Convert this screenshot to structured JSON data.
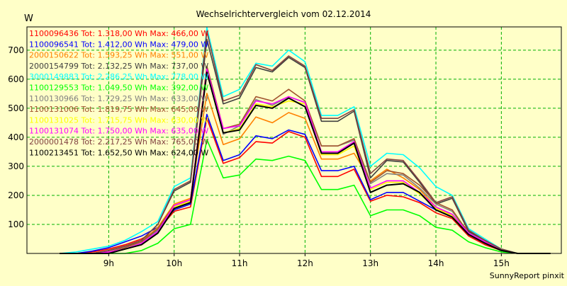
{
  "chart_data": {
    "type": "line",
    "title": "Wechselrichtervergleich vom 02.12.2014",
    "ylabel": "W",
    "xlabel": "",
    "footer": "SunnyReport pinxit",
    "x": [
      "08:15",
      "08:30",
      "08:45",
      "09:00",
      "09:15",
      "09:30",
      "09:45",
      "10:00",
      "10:15",
      "10:30",
      "10:45",
      "11:00",
      "11:15",
      "11:30",
      "11:45",
      "12:00",
      "12:15",
      "12:30",
      "12:45",
      "13:00",
      "13:15",
      "13:30",
      "13:45",
      "14:00",
      "14:15",
      "14:30",
      "14:45",
      "15:00",
      "15:15",
      "15:30",
      "15:45"
    ],
    "xticks": [
      "9h",
      "10h",
      "11h",
      "12h",
      "13h",
      "14h",
      "15h"
    ],
    "yticks": [
      100,
      200,
      300,
      400,
      500,
      600,
      700
    ],
    "ylim": [
      0,
      780
    ],
    "grid": true,
    "legend_position": "top-left",
    "series": [
      {
        "name": "1100096436 Tot: 1.318,00 Wh Max: 466,00 W",
        "color": "#ff0000",
        "values": [
          0,
          0,
          5,
          15,
          30,
          50,
          80,
          145,
          160,
          466,
          310,
          330,
          385,
          380,
          420,
          400,
          265,
          265,
          290,
          180,
          200,
          195,
          175,
          140,
          120,
          60,
          30,
          10,
          0,
          0,
          0
        ]
      },
      {
        "name": "1100096541 Tot: 1.412,00 Wh Max: 479,00 W",
        "color": "#0000ff",
        "values": [
          0,
          0,
          8,
          20,
          40,
          60,
          90,
          150,
          170,
          479,
          320,
          340,
          405,
          395,
          425,
          410,
          285,
          285,
          300,
          185,
          210,
          210,
          180,
          150,
          130,
          70,
          35,
          12,
          0,
          0,
          0
        ]
      },
      {
        "name": "2000150622 Tot: 1.593,25 Wh Max: 551,00 W",
        "color": "#ff8000",
        "values": [
          0,
          0,
          0,
          10,
          25,
          40,
          90,
          170,
          190,
          551,
          375,
          395,
          470,
          450,
          485,
          465,
          325,
          325,
          345,
          250,
          290,
          260,
          220,
          160,
          130,
          80,
          45,
          15,
          0,
          0,
          0
        ]
      },
      {
        "name": "2000154799 Tot: 2.132,25 Wh Max: 737,00 W",
        "color": "#404040",
        "values": [
          0,
          0,
          0,
          10,
          25,
          45,
          100,
          215,
          245,
          737,
          515,
          535,
          640,
          625,
          675,
          640,
          455,
          455,
          490,
          260,
          320,
          315,
          245,
          170,
          190,
          75,
          45,
          15,
          0,
          0,
          0
        ]
      },
      {
        "name": "3000149883 Tot: 2.286,25 Wh Max: 778,00 W",
        "color": "#00ffff",
        "values": [
          0,
          5,
          15,
          25,
          45,
          75,
          110,
          230,
          260,
          778,
          540,
          565,
          655,
          645,
          700,
          660,
          475,
          475,
          505,
          300,
          345,
          340,
          295,
          230,
          200,
          85,
          50,
          15,
          0,
          0,
          0
        ]
      },
      {
        "name": "1100129553 Tot: 1.049,50 Wh Max: 392,00 W",
        "color": "#00ff00",
        "values": [
          0,
          0,
          0,
          0,
          0,
          10,
          35,
          85,
          100,
          392,
          260,
          270,
          325,
          320,
          335,
          320,
          220,
          220,
          235,
          130,
          150,
          150,
          130,
          90,
          80,
          40,
          20,
          5,
          0,
          0,
          0
        ]
      },
      {
        "name": "1100130966 Tot: 1.729,25 Wh Max: 633,00 W",
        "color": "#808080",
        "values": [
          0,
          0,
          0,
          5,
          20,
          40,
          80,
          160,
          180,
          633,
          410,
          440,
          530,
          510,
          540,
          520,
          370,
          370,
          390,
          240,
          275,
          270,
          225,
          170,
          145,
          70,
          40,
          10,
          0,
          0,
          0
        ]
      },
      {
        "name": "1100131006 Tot: 1.819,75 Wh Max: 645,00 W",
        "color": "#a0522d",
        "values": [
          0,
          0,
          0,
          5,
          20,
          40,
          85,
          165,
          185,
          645,
          430,
          445,
          540,
          525,
          565,
          525,
          370,
          370,
          395,
          245,
          285,
          275,
          235,
          175,
          150,
          70,
          40,
          10,
          0,
          0,
          0
        ]
      },
      {
        "name": "1100131025 Tot: 1.715,75 Wh Max: 630,00 W",
        "color": "#ffff00",
        "values": [
          0,
          0,
          0,
          5,
          15,
          30,
          70,
          160,
          180,
          630,
          415,
          430,
          515,
          505,
          525,
          515,
          340,
          340,
          370,
          220,
          245,
          245,
          205,
          155,
          130,
          65,
          35,
          10,
          0,
          0,
          0
        ]
      },
      {
        "name": "1100131074 Tot: 1.750,00 Wh Max: 635,00 W",
        "color": "#ff00ff",
        "values": [
          0,
          0,
          0,
          5,
          15,
          35,
          75,
          165,
          185,
          635,
          430,
          440,
          525,
          515,
          540,
          520,
          350,
          350,
          385,
          225,
          250,
          250,
          210,
          160,
          135,
          70,
          40,
          10,
          0,
          0,
          0
        ]
      },
      {
        "name": "2000001478 Tot: 2.217,25 Wh Max: 765,00 W",
        "color": "#804040",
        "values": [
          0,
          0,
          0,
          10,
          25,
          45,
          100,
          220,
          250,
          765,
          525,
          545,
          650,
          630,
          680,
          645,
          465,
          465,
          495,
          275,
          325,
          320,
          250,
          175,
          195,
          80,
          45,
          15,
          0,
          0,
          0
        ]
      },
      {
        "name": "1100213451 Tot: 1.652,50 Wh Max: 624,00 W",
        "color": "#000000",
        "values": [
          0,
          0,
          0,
          0,
          15,
          30,
          70,
          155,
          175,
          624,
          415,
          425,
          510,
          500,
          535,
          505,
          345,
          345,
          380,
          210,
          235,
          240,
          210,
          150,
          125,
          65,
          35,
          10,
          0,
          0,
          0
        ]
      }
    ]
  }
}
